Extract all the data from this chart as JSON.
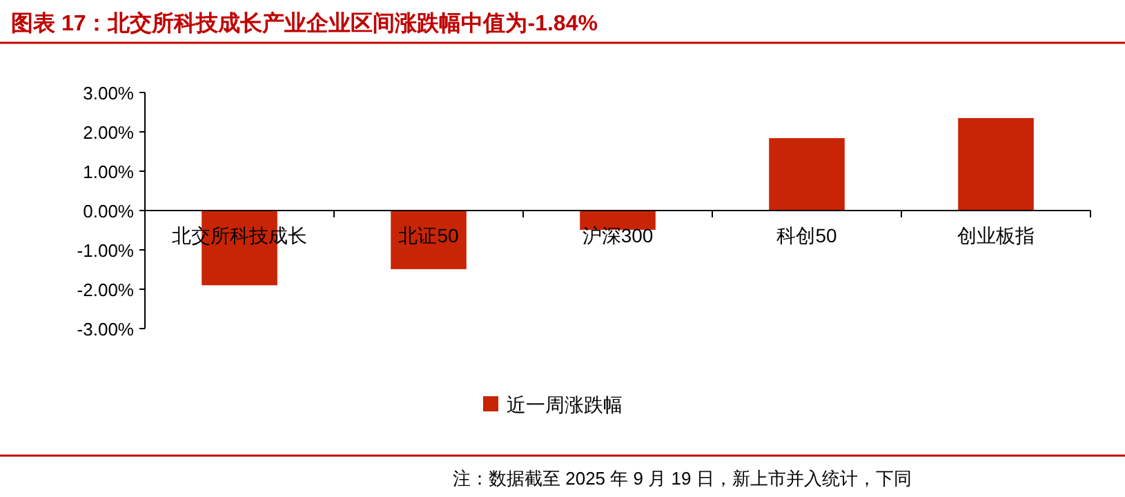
{
  "chart_data": {
    "type": "bar",
    "title": "图表 17：北交所科技成长产业企业区间涨跌幅中值为-1.84%",
    "categories": [
      "北交所科技成长",
      "北证50",
      "沪深300",
      "科创50",
      "创业板指"
    ],
    "series": [
      {
        "name": "近一周涨跌幅",
        "color": "#c82506",
        "values": [
          -1.9,
          -1.49,
          -0.49,
          1.84,
          2.35
        ]
      }
    ],
    "ylim": [
      -3,
      3
    ],
    "yticks": [
      {
        "value": -3,
        "label": "-3.00%"
      },
      {
        "value": -2,
        "label": "-2.00%"
      },
      {
        "value": -1,
        "label": "-1.00%"
      },
      {
        "value": 0,
        "label": "0.00%"
      },
      {
        "value": 1,
        "label": "1.00%"
      },
      {
        "value": 2,
        "label": "2.00%"
      },
      {
        "value": 3,
        "label": "3.00%"
      }
    ],
    "grid": false,
    "legend": "bottom",
    "annotations": [
      "注：数据截至 2025 年 9 月 19 日，新上市并入统计，下同"
    ]
  }
}
